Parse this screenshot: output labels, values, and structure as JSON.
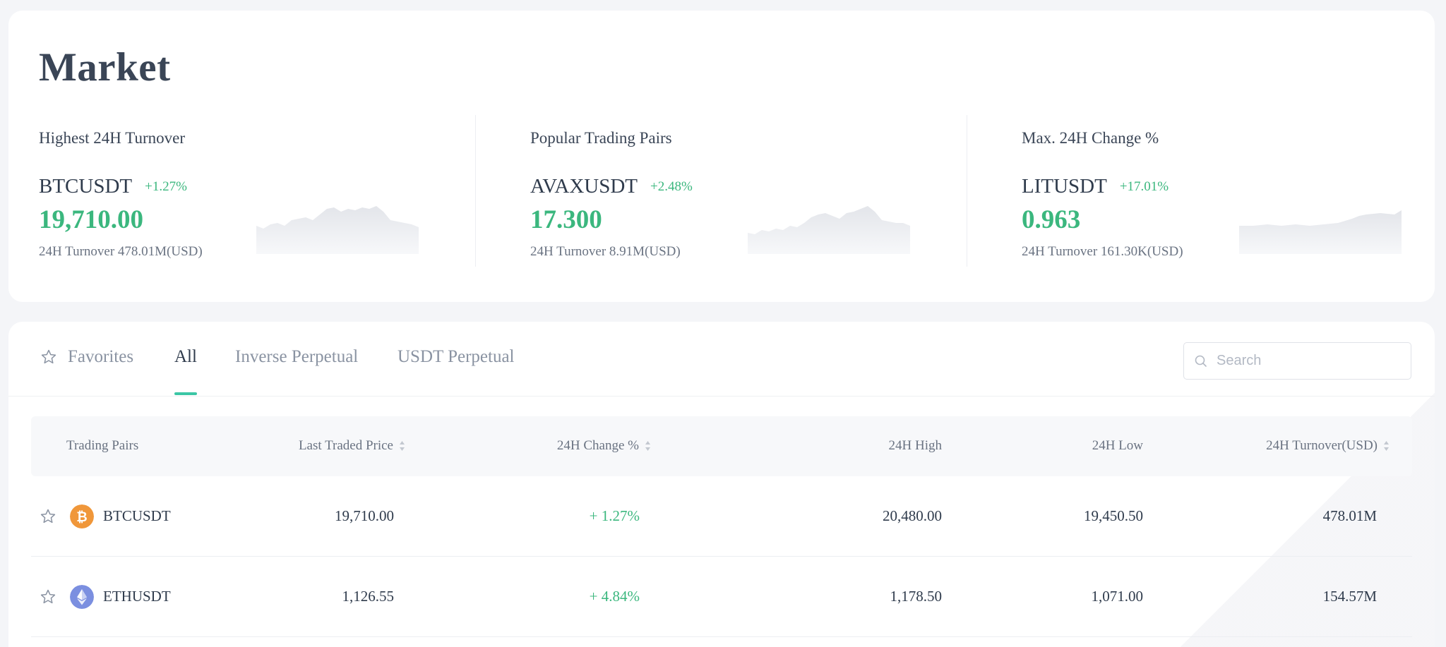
{
  "market": {
    "title": "Market",
    "cards": [
      {
        "heading": "Highest 24H Turnover",
        "pair": "BTCUSDT",
        "change": "+1.27%",
        "price": "19,710.00",
        "turnover": "24H Turnover 478.01M(USD)"
      },
      {
        "heading": "Popular Trading Pairs",
        "pair": "AVAXUSDT",
        "change": "+2.48%",
        "price": "17.300",
        "turnover": "24H Turnover 8.91M(USD)"
      },
      {
        "heading": "Max. 24H Change %",
        "pair": "LITUSDT",
        "change": "+17.01%",
        "price": "0.963",
        "turnover": "24H Turnover 161.30K(USD)"
      }
    ]
  },
  "tabs": {
    "favorites": "Favorites",
    "all": "All",
    "inverse": "Inverse Perpetual",
    "usdt": "USDT Perpetual",
    "active": "All"
  },
  "search": {
    "placeholder": "Search",
    "value": ""
  },
  "table": {
    "headers": {
      "pairs": "Trading Pairs",
      "price": "Last Traded Price",
      "change": "24H Change %",
      "high": "24H High",
      "low": "24H Low",
      "turnover": "24H Turnover(USD)"
    },
    "rows": [
      {
        "icon": "bitcoin-icon",
        "pair": "BTCUSDT",
        "price": "19,710.00",
        "change": "+ 1.27%",
        "high": "20,480.00",
        "low": "19,450.50",
        "turnover": "478.01M"
      },
      {
        "icon": "ethereum-icon",
        "pair": "ETHUSDT",
        "price": "1,126.55",
        "change": "+ 4.84%",
        "high": "1,178.50",
        "low": "1,071.00",
        "turnover": "154.57M"
      }
    ]
  },
  "colors": {
    "positive": "#3bb77e",
    "accent": "#3bc6a5",
    "bitcoin": "#f0973a",
    "ethereum": "#7b8fe0"
  }
}
